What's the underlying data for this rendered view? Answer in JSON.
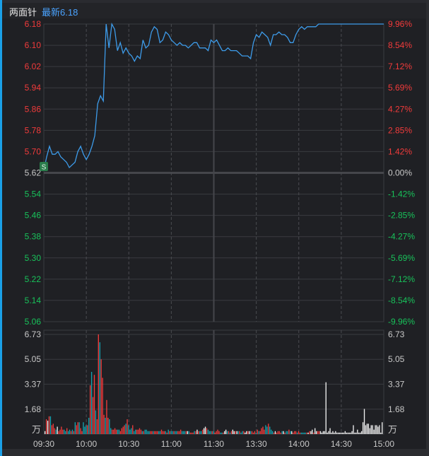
{
  "header": {
    "title": "两面针",
    "latest_label": "最新6.18"
  },
  "colors": {
    "up": "#f23b3b",
    "down": "#18c25a",
    "neutral": "#c8c8c8",
    "price_line": "#3d9be9",
    "vol_up": "#f23b3b",
    "vol_down": "#13a3b0",
    "vol_flat": "#f0f0f0",
    "grid": "#3a3b40",
    "marker_bg": "#2a7d4b"
  },
  "price_axis": {
    "left": [
      "6.18",
      "6.10",
      "6.02",
      "5.94",
      "5.86",
      "5.78",
      "5.70",
      "5.62",
      "5.54",
      "5.46",
      "5.38",
      "5.30",
      "5.22",
      "5.14",
      "5.06"
    ],
    "right": [
      "9.96%",
      "8.54%",
      "7.12%",
      "5.69%",
      "4.27%",
      "2.85%",
      "1.42%",
      "0.00%",
      "-1.42%",
      "-2.85%",
      "-4.27%",
      "-5.69%",
      "-7.12%",
      "-8.54%",
      "-9.96%"
    ]
  },
  "volume_axis": {
    "ticks": [
      "6.73",
      "5.05",
      "3.37",
      "1.68"
    ],
    "unit": "万"
  },
  "time_axis": [
    "09:30",
    "10:00",
    "10:30",
    "11:00",
    "11:30",
    "13:30",
    "14:00",
    "14:30",
    "15:00"
  ],
  "marker": {
    "label": "S"
  },
  "chart_data": [
    {
      "type": "line",
      "title": "两面针 分时",
      "xlabel": "time",
      "ylabel": "price",
      "ylim": [
        5.06,
        6.18
      ],
      "y2lim": [
        "-9.96%",
        "9.96%"
      ],
      "prev_close": 5.62,
      "latest": 6.18,
      "x_ticks": [
        "09:30",
        "10:00",
        "10:30",
        "11:00",
        "11:30",
        "13:30",
        "14:00",
        "14:30",
        "15:00"
      ],
      "series": [
        {
          "name": "price",
          "x_minutes": [
            0,
            2,
            4,
            6,
            8,
            10,
            12,
            14,
            16,
            18,
            20,
            22,
            24,
            26,
            28,
            30,
            32,
            34,
            36,
            38,
            40,
            42,
            44,
            46,
            48,
            50,
            52,
            54,
            56,
            58,
            60,
            62,
            64,
            66,
            68,
            70,
            72,
            74,
            76,
            78,
            80,
            82,
            84,
            86,
            88,
            90,
            92,
            94,
            96,
            98,
            100,
            102,
            104,
            106,
            108,
            110,
            112,
            114,
            116,
            118,
            120,
            122,
            124,
            126,
            128,
            130,
            132,
            134,
            136,
            138,
            140,
            142,
            144,
            146,
            148,
            150,
            152,
            154,
            156,
            158,
            160,
            162,
            164,
            166,
            168,
            170,
            172,
            174,
            176,
            178,
            180,
            182,
            184,
            186,
            188,
            190,
            192,
            194,
            196,
            198,
            200,
            202,
            204,
            206,
            208,
            210,
            212,
            214,
            216,
            218,
            220,
            222,
            224,
            226,
            228,
            230,
            232,
            234,
            236,
            238,
            240
          ],
          "values": [
            5.63,
            5.68,
            5.72,
            5.69,
            5.69,
            5.7,
            5.68,
            5.67,
            5.66,
            5.64,
            5.65,
            5.66,
            5.7,
            5.72,
            5.69,
            5.67,
            5.69,
            5.72,
            5.76,
            5.88,
            5.91,
            5.89,
            6.18,
            6.09,
            6.18,
            6.16,
            6.08,
            6.11,
            6.07,
            6.09,
            6.07,
            6.06,
            6.04,
            6.06,
            6.05,
            6.12,
            6.09,
            6.1,
            6.15,
            6.17,
            6.16,
            6.11,
            6.12,
            6.15,
            6.14,
            6.12,
            6.11,
            6.1,
            6.11,
            6.1,
            6.1,
            6.09,
            6.1,
            6.11,
            6.11,
            6.09,
            6.09,
            6.09,
            6.08,
            6.12,
            6.11,
            6.12,
            6.1,
            6.08,
            6.08,
            6.09,
            6.08,
            6.08,
            6.08,
            6.07,
            6.06,
            6.06,
            6.06,
            6.05,
            6.11,
            6.14,
            6.13,
            6.15,
            6.14,
            6.13,
            6.1,
            6.14,
            6.14,
            6.15,
            6.14,
            6.14,
            6.13,
            6.11,
            6.11,
            6.14,
            6.16,
            6.17,
            6.16,
            6.17,
            6.17,
            6.17,
            6.17,
            6.18,
            6.18,
            6.18,
            6.18,
            6.18,
            6.18,
            6.18,
            6.18,
            6.18,
            6.18,
            6.18,
            6.18,
            6.18,
            6.18,
            6.18,
            6.18,
            6.18,
            6.18,
            6.18,
            6.18,
            6.18,
            6.18,
            6.18,
            6.18
          ]
        }
      ]
    },
    {
      "type": "bar",
      "title": "成交量",
      "ylabel": "万",
      "ylim": [
        0,
        6.73
      ],
      "y_ticks": [
        1.68,
        3.37,
        5.05,
        6.73
      ],
      "series": [
        {
          "name": "volume",
          "values": [
            0.2,
            1.0,
            0.9,
            1.2,
            1.2,
            0.6,
            0.7,
            0.4,
            0.3,
            0.5,
            0.2,
            0.3,
            0.5,
            0.3,
            0.3,
            0.2,
            0.4,
            0.2,
            0.3,
            0.2,
            0.3,
            0.2,
            0.8,
            0.6,
            0.8,
            0.8,
            0.4,
            0.2,
            0.8,
            0.5,
            0.6,
            0.6,
            1.1,
            3.3,
            4.2,
            2.5,
            4.0,
            1.6,
            1.0,
            6.73,
            6.2,
            5.05,
            3.8,
            1.3,
            1.1,
            2.3,
            1.1,
            1.0,
            0.4,
            0.3,
            0.3,
            0.4,
            0.3,
            0.3,
            0.3,
            0.2,
            0.4,
            0.5,
            0.6,
            0.7,
            1.0,
            0.6,
            0.3,
            0.4,
            0.6,
            0.2,
            0.3,
            0.3,
            0.3,
            0.4,
            0.3,
            0.2,
            0.2,
            0.3,
            0.3,
            0.2,
            0.2,
            0.2,
            0.2,
            0.2,
            0.2,
            0.2,
            0.2,
            0.2,
            0.2,
            0.3,
            0.2,
            0.2,
            0.2,
            0.1,
            0.3,
            0.2,
            0.2,
            0.2,
            0.2,
            0.2,
            0.2,
            0.2,
            0.2,
            0.3,
            0.2,
            0.2,
            0.2,
            0.2,
            0.2,
            0.2,
            0.1,
            0.1,
            0.1,
            0.2,
            0.2,
            0.3,
            0.2,
            0.2,
            0.2,
            0.3,
            0.4,
            0.5,
            0.4,
            0.3,
            0.2,
            0.2,
            0.2,
            0.2,
            0.1,
            0.2,
            0.3,
            0.2,
            0.1,
            0.1,
            0.1,
            0.2,
            0.3,
            0.2,
            0.2,
            0.1,
            0.2,
            0.3,
            0.2,
            0.2,
            0.2,
            0.2,
            0.2,
            0.1,
            0.2,
            0.2,
            0.1,
            0.2,
            0.2,
            0.2,
            0.2,
            0.2,
            0.1,
            0.2,
            0.1,
            0.3,
            0.2,
            0.2,
            0.4,
            0.5,
            0.3,
            0.6,
            0.5,
            0.7,
            0.5,
            0.3,
            0.2,
            0.1,
            0.2,
            0.1,
            0.2,
            0.2,
            0.1,
            0.2,
            0.2,
            0.1,
            0.2,
            0.2,
            0.3,
            0.2,
            0.2,
            0.1,
            0.2,
            0.2,
            0.1,
            0.2,
            0.1,
            0.1,
            0.1,
            0.1,
            0.1,
            0.1,
            0.1,
            0.2,
            0.2,
            0.3,
            0.1,
            0.4,
            0.2,
            0.2,
            0.2,
            0.2,
            0.1,
            0.2,
            0.2,
            3.5,
            0.1,
            0.2,
            0.4,
            0.1,
            0.2,
            0.1,
            0.2,
            0.1,
            0.1,
            0.1,
            0.1,
            0.1,
            0.1,
            0.2,
            0.1,
            0.1,
            0.1,
            0.1,
            0.2,
            0.6,
            0.1,
            0.1,
            0.3,
            0.1,
            0.1,
            0.2,
            0.8,
            1.7,
            0.6,
            0.7,
            0.7,
            0.4,
            0.6,
            0.6,
            0.3,
            0.6,
            0.6,
            0.5,
            0.6,
            0.1,
            0.8
          ]
        }
      ]
    }
  ]
}
